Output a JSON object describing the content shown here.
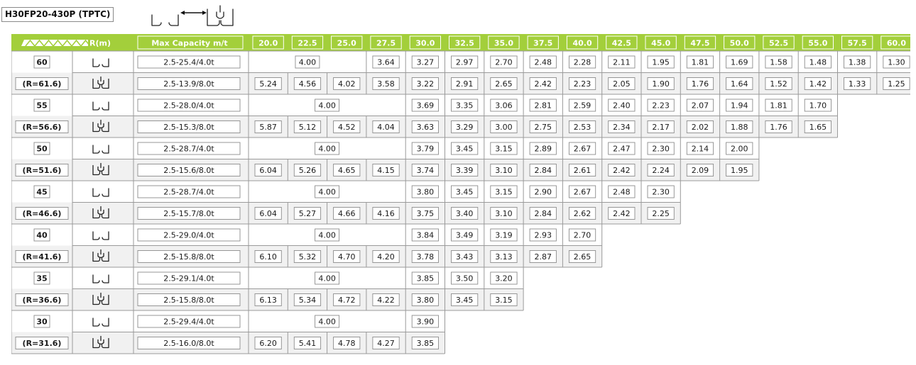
{
  "model": "H30FP20-430P (TPTC)",
  "legend": {
    "icons": [
      "single-drum-icon",
      "double-drum-icon"
    ]
  },
  "header": {
    "radius_label": "R(m)",
    "capacity_label": "Max Capacity m/t",
    "radii": [
      "20.0",
      "22.5",
      "25.0",
      "27.5",
      "30.0",
      "32.5",
      "35.0",
      "37.5",
      "40.0",
      "42.5",
      "45.0",
      "47.5",
      "50.0",
      "52.5",
      "55.0",
      "57.5",
      "60.0"
    ]
  },
  "groups": [
    {
      "boom": "60",
      "r": "(R=61.6)",
      "rows": [
        {
          "mode": "single",
          "cap": "2.5-25.4/4.0t",
          "span": {
            "text": "4.00",
            "count": 3
          },
          "values": [
            "3.64",
            "3.27",
            "2.97",
            "2.70",
            "2.48",
            "2.28",
            "2.11",
            "1.95",
            "1.81",
            "1.69",
            "1.58",
            "1.48",
            "1.38",
            "1.30"
          ]
        },
        {
          "mode": "double",
          "cap": "2.5-13.9/8.0t",
          "values": [
            "5.24",
            "4.56",
            "4.02",
            "3.58",
            "3.22",
            "2.91",
            "2.65",
            "2.42",
            "2.23",
            "2.05",
            "1.90",
            "1.76",
            "1.64",
            "1.52",
            "1.42",
            "1.33",
            "1.25"
          ]
        }
      ]
    },
    {
      "boom": "55",
      "r": "(R=56.6)",
      "rows": [
        {
          "mode": "single",
          "cap": "2.5-28.0/4.0t",
          "span": {
            "text": "4.00",
            "count": 4
          },
          "values": [
            "3.69",
            "3.35",
            "3.06",
            "2.81",
            "2.59",
            "2.40",
            "2.23",
            "2.07",
            "1.94",
            "1.81",
            "1.70"
          ]
        },
        {
          "mode": "double",
          "cap": "2.5-15.3/8.0t",
          "values": [
            "5.87",
            "5.12",
            "4.52",
            "4.04",
            "3.63",
            "3.29",
            "3.00",
            "2.75",
            "2.53",
            "2.34",
            "2.17",
            "2.02",
            "1.88",
            "1.76",
            "1.65"
          ]
        }
      ]
    },
    {
      "boom": "50",
      "r": "(R=51.6)",
      "rows": [
        {
          "mode": "single",
          "cap": "2.5-28.7/4.0t",
          "span": {
            "text": "4.00",
            "count": 4
          },
          "values": [
            "3.79",
            "3.45",
            "3.15",
            "2.89",
            "2.67",
            "2.47",
            "2.30",
            "2.14",
            "2.00"
          ]
        },
        {
          "mode": "double",
          "cap": "2.5-15.6/8.0t",
          "values": [
            "6.04",
            "5.26",
            "4.65",
            "4.15",
            "3.74",
            "3.39",
            "3.10",
            "2.84",
            "2.61",
            "2.42",
            "2.24",
            "2.09",
            "1.95"
          ]
        }
      ]
    },
    {
      "boom": "45",
      "r": "(R=46.6)",
      "rows": [
        {
          "mode": "single",
          "cap": "2.5-28.7/4.0t",
          "span": {
            "text": "4.00",
            "count": 4
          },
          "values": [
            "3.80",
            "3.45",
            "3.15",
            "2.90",
            "2.67",
            "2.48",
            "2.30"
          ]
        },
        {
          "mode": "double",
          "cap": "2.5-15.7/8.0t",
          "values": [
            "6.04",
            "5.27",
            "4.66",
            "4.16",
            "3.75",
            "3.40",
            "3.10",
            "2.84",
            "2.62",
            "2.42",
            "2.25"
          ]
        }
      ]
    },
    {
      "boom": "40",
      "r": "(R=41.6)",
      "rows": [
        {
          "mode": "single",
          "cap": "2.5-29.0/4.0t",
          "span": {
            "text": "4.00",
            "count": 4
          },
          "values": [
            "3.84",
            "3.49",
            "3.19",
            "2.93",
            "2.70"
          ]
        },
        {
          "mode": "double",
          "cap": "2.5-15.8/8.0t",
          "values": [
            "6.10",
            "5.32",
            "4.70",
            "4.20",
            "3.78",
            "3.43",
            "3.13",
            "2.87",
            "2.65"
          ]
        }
      ]
    },
    {
      "boom": "35",
      "r": "(R=36.6)",
      "rows": [
        {
          "mode": "single",
          "cap": "2.5-29.1/4.0t",
          "span": {
            "text": "4.00",
            "count": 4
          },
          "values": [
            "3.85",
            "3.50",
            "3.20"
          ]
        },
        {
          "mode": "double",
          "cap": "2.5-15.8/8.0t",
          "values": [
            "6.13",
            "5.34",
            "4.72",
            "4.22",
            "3.80",
            "3.45",
            "3.15"
          ]
        }
      ]
    },
    {
      "boom": "30",
      "r": "(R=31.6)",
      "rows": [
        {
          "mode": "single",
          "cap": "2.5-29.4/4.0t",
          "span": {
            "text": "4.00",
            "count": 4
          },
          "values": [
            "3.90"
          ]
        },
        {
          "mode": "double",
          "cap": "2.5-16.0/8.0t",
          "values": [
            "6.20",
            "5.41",
            "4.78",
            "4.27",
            "3.85"
          ]
        }
      ]
    }
  ],
  "colors": {
    "header": "#a3cf3b",
    "alt_row": "#f1f1f1",
    "grid": "#9a9a9a"
  }
}
